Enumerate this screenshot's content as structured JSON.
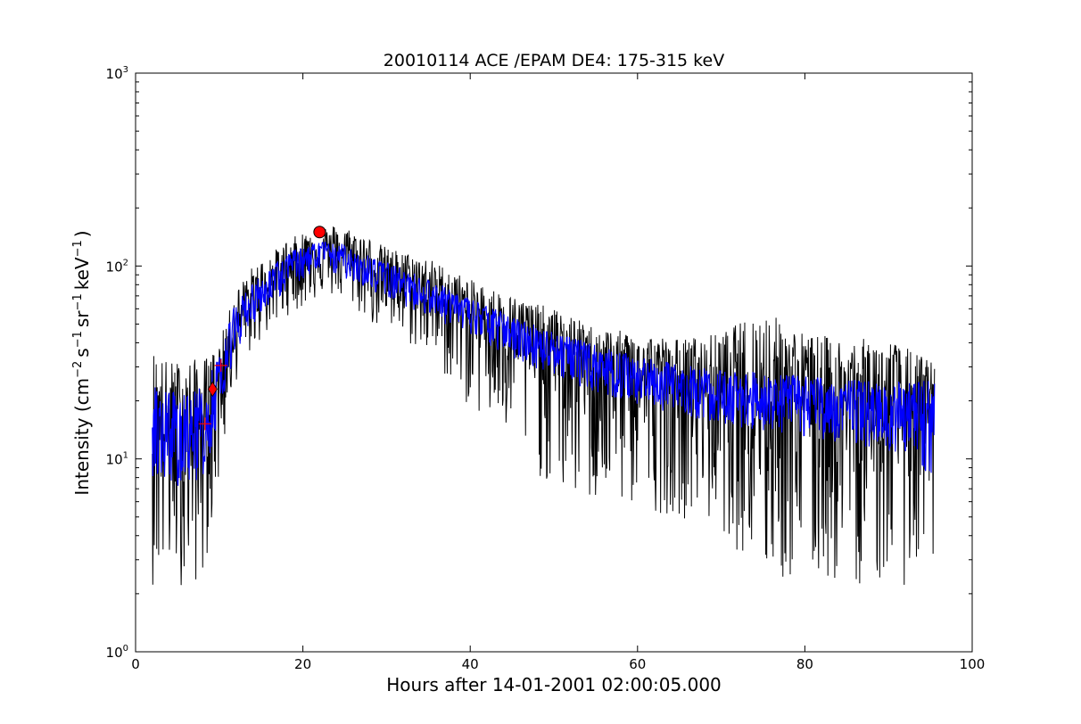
{
  "chart_data": {
    "type": "line",
    "title": "20010114 ACE /EPAM DE4: 175-315 keV",
    "xlabel": "Hours after 14-01-2001 02:00:05.000",
    "ylabel": "Intensity (cm^-2 s^-1 sr^-1 keV^-1)",
    "ylabel_parts": {
      "prefix": "Intensity (cm",
      "exp1": "−2",
      "s": "s",
      "exp2": "−1",
      "sr": "sr",
      "exp3": "−1",
      "kev": "keV",
      "exp4": "−1",
      "suffix": ")"
    },
    "xlim": [
      0,
      100
    ],
    "ylim": [
      1,
      1000
    ],
    "yscale": "log",
    "grid": false,
    "x_ticks": [
      0,
      20,
      40,
      60,
      80,
      100
    ],
    "x_tick_labels": [
      "0",
      "20",
      "40",
      "60",
      "80",
      "100"
    ],
    "y_ticks": [
      1,
      10,
      100,
      1000
    ],
    "y_tick_labels": [
      {
        "base": "10",
        "exp": "0"
      },
      {
        "base": "10",
        "exp": "1"
      },
      {
        "base": "10",
        "exp": "2"
      },
      {
        "base": "10",
        "exp": "3"
      }
    ],
    "series": [
      {
        "role": "raw intensity",
        "color": "#000000",
        "x": [
          2,
          4,
          6,
          8,
          9,
          10,
          11,
          12,
          14,
          16,
          18,
          20,
          22,
          24,
          26,
          28,
          30,
          35,
          40,
          45,
          50,
          55,
          60,
          65,
          70,
          75,
          80,
          85,
          90,
          95.5
        ],
        "y": [
          14,
          14,
          13.5,
          14.5,
          18,
          26,
          38,
          50,
          66,
          80,
          95,
          108,
          116,
          114,
          107,
          98,
          90,
          74,
          58,
          46,
          38,
          32,
          27,
          24,
          22,
          21,
          20,
          19,
          18,
          17
        ],
        "upper": [
          38,
          32,
          33,
          33,
          35,
          40,
          55,
          75,
          100,
          115,
          135,
          150,
          160,
          165,
          155,
          140,
          125,
          110,
          85,
          70,
          60,
          48,
          45,
          42,
          45,
          60,
          45,
          42,
          42,
          32
        ],
        "lower": [
          2.2,
          2.2,
          2.2,
          2.2,
          4.3,
          7,
          16,
          25,
          37,
          45,
          55,
          60,
          70,
          68,
          60,
          50,
          44,
          34,
          18,
          12,
          6.5,
          5.5,
          5.5,
          5,
          4.3,
          2.2,
          2.2,
          2.2,
          2.2,
          2.2
        ]
      },
      {
        "role": "smoothed intensity",
        "color": "#0000ff",
        "x": [
          2,
          4,
          6,
          8,
          9,
          10,
          11,
          12,
          14,
          16,
          18,
          20,
          22,
          24,
          26,
          28,
          30,
          35,
          40,
          45,
          50,
          55,
          60,
          65,
          70,
          75,
          80,
          85,
          90,
          95.5
        ],
        "y": [
          14,
          14,
          13.5,
          14.5,
          18,
          26,
          38,
          50,
          66,
          80,
          95,
          108,
          116,
          114,
          107,
          98,
          90,
          74,
          58,
          46,
          38,
          32,
          27,
          24,
          22,
          21,
          20,
          19,
          18,
          17
        ],
        "upper": [
          24,
          23,
          22,
          24,
          28,
          36,
          50,
          65,
          82,
          98,
          115,
          128,
          135,
          133,
          125,
          115,
          105,
          86,
          68,
          55,
          46,
          39,
          34,
          31,
          29,
          28,
          27,
          26,
          25,
          26
        ],
        "lower": [
          8,
          7.5,
          7,
          8,
          11,
          17,
          26,
          36,
          50,
          62,
          75,
          85,
          92,
          90,
          83,
          75,
          68,
          55,
          43,
          33,
          27,
          22,
          19,
          17,
          15,
          14,
          13,
          12,
          11,
          8
        ]
      }
    ],
    "markers": [
      {
        "label": "plus",
        "x": 8.3,
        "y": 15.2,
        "color": "#ff0000",
        "shape": "plus"
      },
      {
        "label": "diamond",
        "x": 9.2,
        "y": 23,
        "color": "#ff0000",
        "shape": "diamond"
      },
      {
        "label": "plus",
        "x": 10.2,
        "y": 30.5,
        "color": "#ff0000",
        "shape": "plus"
      },
      {
        "label": "circle",
        "x": 22,
        "y": 150,
        "color": "#ff0000",
        "shape": "circle"
      }
    ]
  }
}
